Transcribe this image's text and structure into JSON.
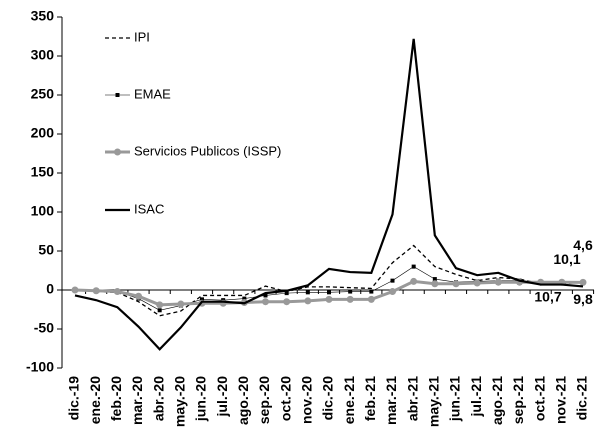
{
  "chart_data": {
    "type": "line",
    "categories": [
      "dic.-19",
      "ene.-20",
      "feb.-20",
      "mar.-20",
      "abr.-20",
      "may.-20",
      "jun.-20",
      "jul.-20",
      "ago.-20",
      "sep.-20",
      "oct.-20",
      "nov.-20",
      "dic.-20",
      "ene.-21",
      "feb.-21",
      "mar.-21",
      "abr.-21",
      "may.-21",
      "jun.-21",
      "jul.-21",
      "ago.-21",
      "sep.-21",
      "oct.-21",
      "nov.-21",
      "dic.-21"
    ],
    "ylim": [
      -100,
      350
    ],
    "yticks": [
      -100,
      -50,
      0,
      50,
      100,
      150,
      200,
      250,
      300,
      350
    ],
    "legend": "top-left",
    "series": [
      {
        "name": "IPI",
        "color": "#000000",
        "style": "dashed",
        "marker": "none",
        "width": 1.3,
        "values": [
          0,
          -2,
          -3,
          -15,
          -33,
          -27,
          -7,
          -7,
          -7,
          5,
          -2,
          4,
          4,
          3,
          2,
          35,
          57,
          30,
          20,
          12,
          16,
          14,
          8,
          8,
          10.1
        ],
        "value_labels": [
          null,
          null,
          null,
          null,
          null,
          null,
          null,
          null,
          null,
          null,
          null,
          null,
          null,
          null,
          null,
          null,
          null,
          null,
          null,
          null,
          null,
          null,
          null,
          null,
          "10,1"
        ]
      },
      {
        "name": "EMAE",
        "color": "#000000",
        "style": "solid",
        "marker": "square",
        "width": 0.6,
        "values": [
          0,
          -2,
          -2,
          -11,
          -26,
          -20,
          -12,
          -13,
          -11,
          -7,
          -4,
          -3,
          -3,
          -2,
          -2,
          12,
          30,
          14,
          10,
          11,
          12,
          12,
          9,
          9,
          10.7
        ],
        "value_labels": [
          null,
          null,
          null,
          null,
          null,
          null,
          null,
          null,
          null,
          null,
          null,
          null,
          null,
          null,
          null,
          null,
          null,
          null,
          null,
          null,
          null,
          null,
          null,
          null,
          "10,7"
        ]
      },
      {
        "name": "Servicios Publicos (ISSP)",
        "color": "#999999",
        "style": "solid",
        "marker": "circle",
        "width": 3,
        "values": [
          0,
          -1,
          -2,
          -8,
          -19,
          -18,
          -17,
          -17,
          -16,
          -15,
          -15,
          -14,
          -12,
          -12,
          -12,
          -2,
          11,
          8,
          8,
          9,
          10,
          10,
          10,
          10,
          9.8
        ],
        "value_labels": [
          null,
          null,
          null,
          null,
          null,
          null,
          null,
          null,
          null,
          null,
          null,
          null,
          null,
          null,
          null,
          null,
          null,
          null,
          null,
          null,
          null,
          null,
          null,
          null,
          "9,8"
        ]
      },
      {
        "name": "ISAC",
        "color": "#000000",
        "style": "solid",
        "marker": "none",
        "width": 2.2,
        "values": [
          -7,
          -13,
          -22,
          -47,
          -76,
          -48,
          -15,
          -15,
          -17,
          -4,
          -1,
          6,
          27,
          23,
          22,
          97,
          322,
          70,
          28,
          19,
          22,
          12,
          7,
          7,
          4.6
        ],
        "value_labels": [
          null,
          null,
          null,
          null,
          null,
          null,
          null,
          null,
          null,
          null,
          null,
          null,
          null,
          null,
          null,
          null,
          null,
          null,
          null,
          null,
          null,
          null,
          null,
          null,
          "4,6"
        ]
      }
    ]
  }
}
